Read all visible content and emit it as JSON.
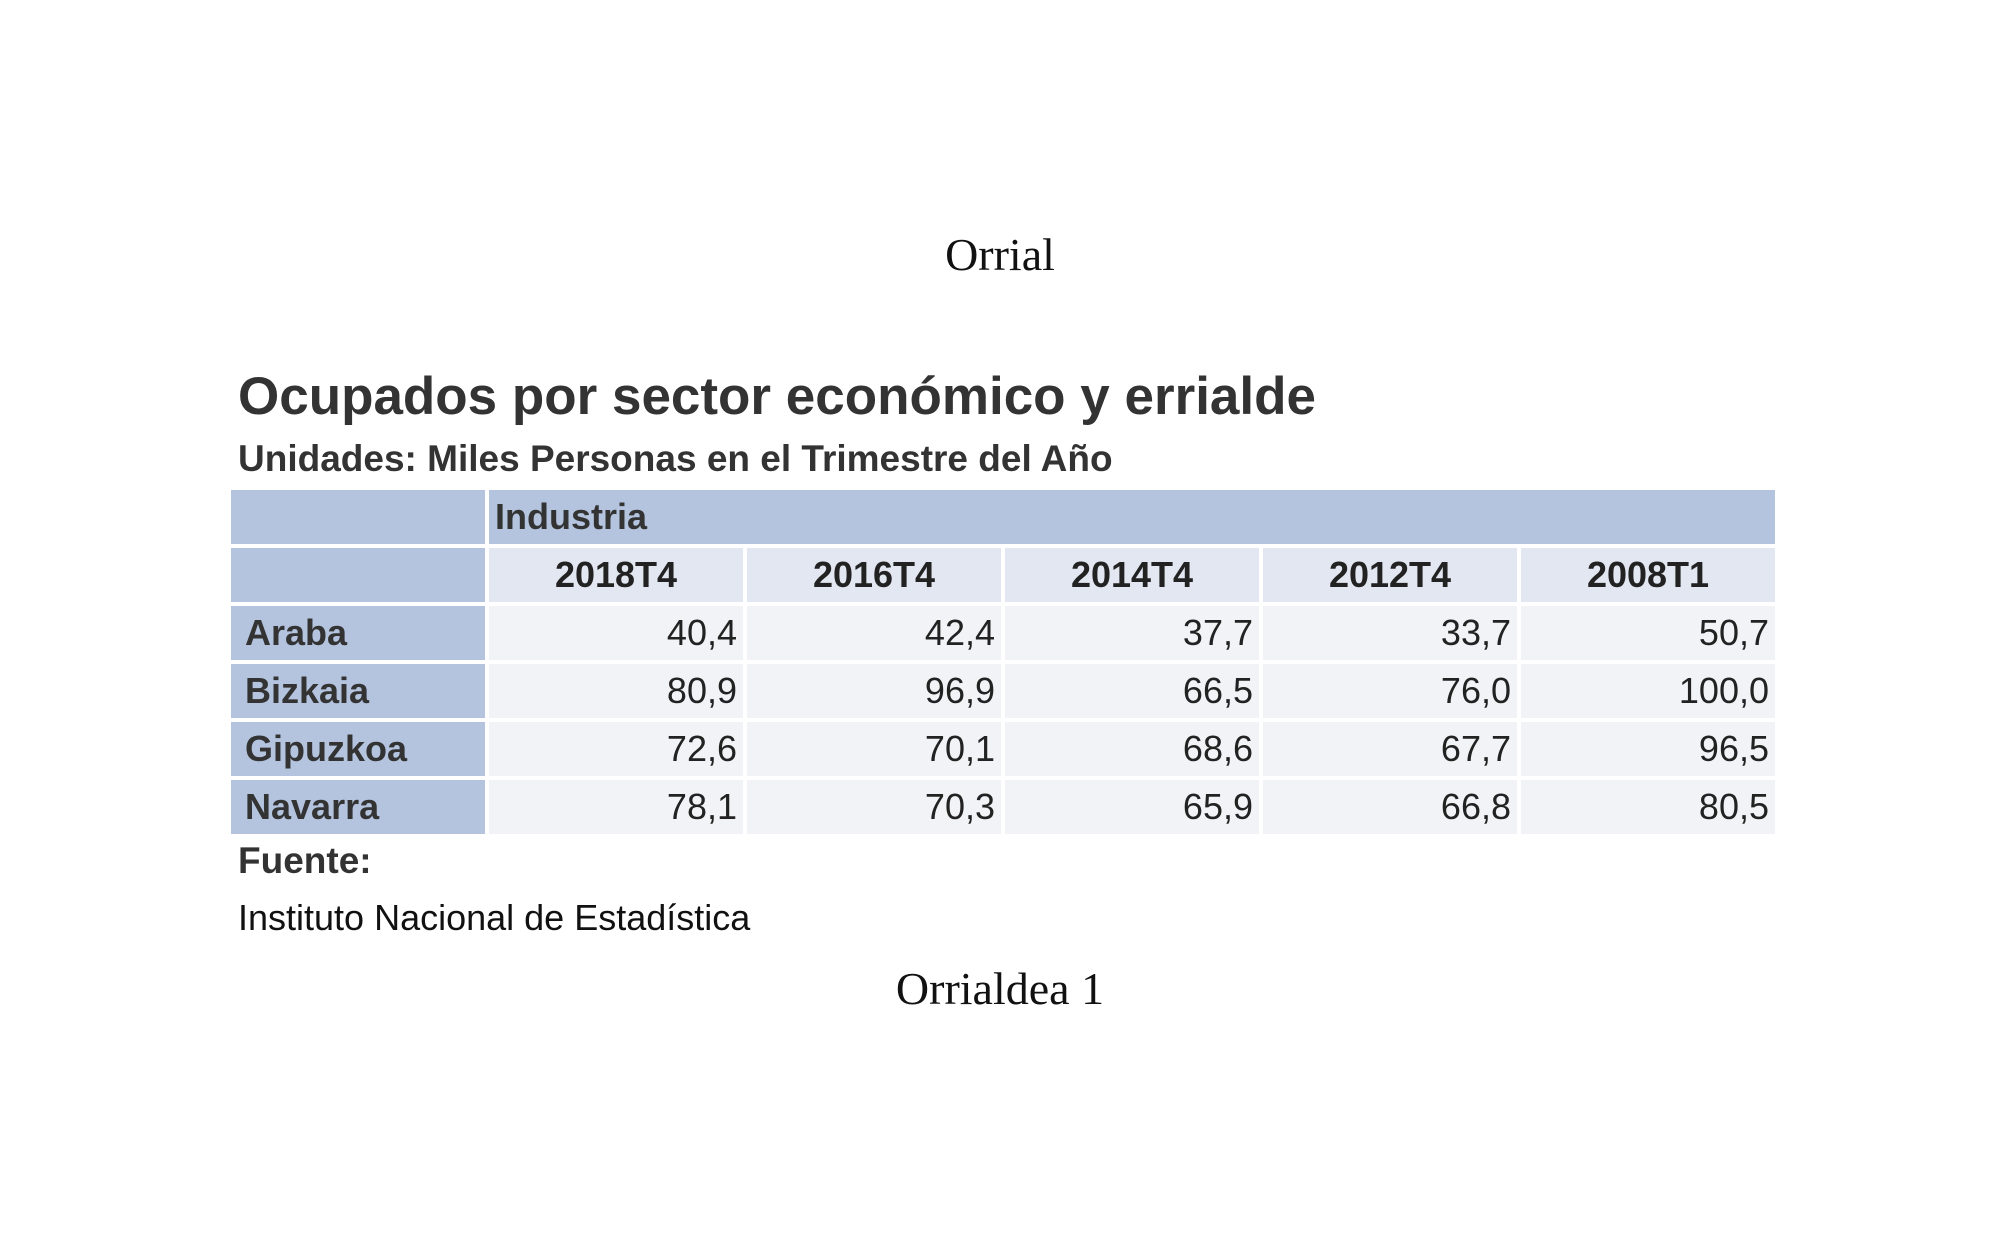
{
  "header": "Orrial",
  "title": "Ocupados por sector económico y errialde",
  "subtitle": "Unidades: Miles Personas en el Trimestre del Año",
  "table": {
    "sector": "Industria",
    "columns": [
      "2018T4",
      "2016T4",
      "2014T4",
      "2012T4",
      "2008T1"
    ],
    "rows": [
      {
        "label": "Araba",
        "values": [
          "40,4",
          "42,4",
          "37,7",
          "33,7",
          "50,7"
        ]
      },
      {
        "label": "Bizkaia",
        "values": [
          "80,9",
          "96,9",
          "66,5",
          "76,0",
          "100,0"
        ]
      },
      {
        "label": "Gipuzkoa",
        "values": [
          "72,6",
          "70,1",
          "68,6",
          "67,7",
          "96,5"
        ]
      },
      {
        "label": "Navarra",
        "values": [
          "78,1",
          "70,3",
          "65,9",
          "66,8",
          "80,5"
        ]
      }
    ]
  },
  "source_label": "Fuente:",
  "source": "Instituto Nacional de Estadística",
  "footer": "Orrialdea 1",
  "colors": {
    "header_blue": "#b4c4df",
    "column_header": "#e3e7f1",
    "cell": "#f2f3f6"
  }
}
